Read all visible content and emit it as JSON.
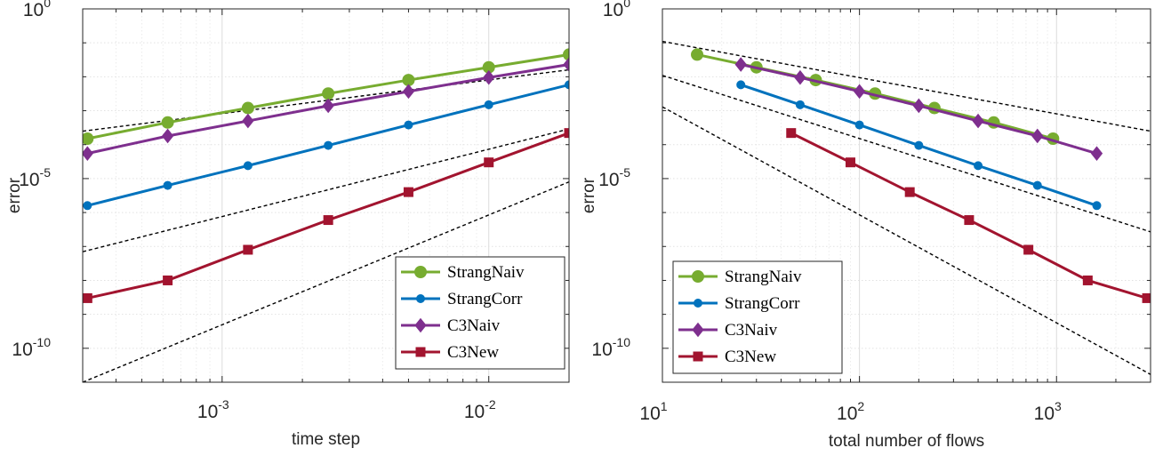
{
  "chart_data": [
    {
      "type": "line",
      "xlabel": "time step",
      "ylabel": "error",
      "xscale": "log",
      "yscale": "log",
      "xlim": [
        0.0003,
        0.02
      ],
      "ylim": [
        1e-11,
        1
      ],
      "xticks": [
        {
          "base": "10",
          "exp": "-3",
          "value": 0.001
        },
        {
          "base": "10",
          "exp": "-2",
          "value": 0.01
        }
      ],
      "yticks": [
        {
          "base": "10",
          "exp": "0",
          "value": 1
        },
        {
          "base": "10",
          "exp": "-5",
          "value": 1e-05
        },
        {
          "base": "10",
          "exp": "-10",
          "value": 1e-10
        }
      ],
      "grid": true,
      "legend": "bottom-right",
      "series": [
        {
          "name": "StrangNaiv",
          "color": "#77AC30",
          "marker": "circle-large",
          "x": [
            0.0003125,
            0.000625,
            0.00125,
            0.0025,
            0.005,
            0.01,
            0.02
          ],
          "y": [
            0.00015,
            0.00045,
            0.0012,
            0.0032,
            0.008,
            0.019,
            0.045
          ]
        },
        {
          "name": "StrangCorr",
          "color": "#0072BD",
          "marker": "circle-small",
          "x": [
            0.0003125,
            0.000625,
            0.00125,
            0.0025,
            0.005,
            0.01,
            0.02
          ],
          "y": [
            1.6e-06,
            6.3e-06,
            2.4e-05,
            9.5e-05,
            0.00038,
            0.0015,
            0.0058
          ]
        },
        {
          "name": "C3Naiv",
          "color": "#7E2F8E",
          "marker": "diamond",
          "x": [
            0.0003125,
            0.000625,
            0.00125,
            0.0025,
            0.005,
            0.01,
            0.02
          ],
          "y": [
            5.5e-05,
            0.00018,
            0.0005,
            0.0014,
            0.0037,
            0.0095,
            0.023
          ]
        },
        {
          "name": "C3New",
          "color": "#A2142F",
          "marker": "square",
          "x": [
            0.0003125,
            0.000625,
            0.00125,
            0.0025,
            0.005,
            0.01,
            0.02
          ],
          "y": [
            3e-09,
            1e-08,
            8e-08,
            6e-07,
            4e-06,
            3e-05,
            0.00022
          ]
        }
      ],
      "reference_lines": [
        {
          "x": [
            0.0003,
            0.02
          ],
          "y": [
            0.00025,
            0.016
          ]
        },
        {
          "x": [
            0.0003,
            0.02
          ],
          "y": [
            7e-08,
            0.00029
          ]
        },
        {
          "x": [
            0.0003,
            0.02
          ],
          "y": [
            1e-11,
            8e-06
          ]
        }
      ]
    },
    {
      "type": "line",
      "xlabel": "total number of flows",
      "ylabel": "error",
      "xscale": "log",
      "yscale": "log",
      "xlim": [
        10,
        3000
      ],
      "ylim": [
        1e-11,
        1
      ],
      "xticks": [
        {
          "base": "10",
          "exp": "1",
          "value": 10
        },
        {
          "base": "10",
          "exp": "2",
          "value": 100
        },
        {
          "base": "10",
          "exp": "3",
          "value": 1000
        }
      ],
      "yticks": [
        {
          "base": "10",
          "exp": "0",
          "value": 1
        },
        {
          "base": "10",
          "exp": "-5",
          "value": 1e-05
        },
        {
          "base": "10",
          "exp": "-10",
          "value": 1e-10
        }
      ],
      "grid": true,
      "legend": "bottom-left",
      "series": [
        {
          "name": "StrangNaiv",
          "color": "#77AC30",
          "marker": "circle-large",
          "x": [
            15,
            30,
            60,
            120,
            240,
            480,
            960
          ],
          "y": [
            0.045,
            0.019,
            0.008,
            0.0032,
            0.0012,
            0.00045,
            0.00015
          ]
        },
        {
          "name": "StrangCorr",
          "color": "#0072BD",
          "marker": "circle-small",
          "x": [
            25,
            50,
            100,
            200,
            400,
            800,
            1600
          ],
          "y": [
            0.0058,
            0.0015,
            0.00038,
            9.5e-05,
            2.4e-05,
            6.3e-06,
            1.6e-06
          ]
        },
        {
          "name": "C3Naiv",
          "color": "#7E2F8E",
          "marker": "diamond",
          "x": [
            25,
            50,
            100,
            200,
            400,
            800,
            1600
          ],
          "y": [
            0.023,
            0.0095,
            0.0037,
            0.0014,
            0.0005,
            0.00018,
            5.5e-05
          ]
        },
        {
          "name": "C3New",
          "color": "#A2142F",
          "marker": "square",
          "x": [
            45,
            90,
            180,
            360,
            720,
            1440,
            2880
          ],
          "y": [
            0.00022,
            3e-05,
            4e-06,
            6e-07,
            8e-08,
            1e-08,
            3e-09
          ]
        }
      ],
      "reference_lines": [
        {
          "x": [
            10,
            3000
          ],
          "y": [
            0.11,
            0.00025
          ]
        },
        {
          "x": [
            10,
            3000
          ],
          "y": [
            0.011,
            2.7e-07
          ]
        },
        {
          "x": [
            10,
            3000
          ],
          "y": [
            0.0013,
            1.7e-11
          ]
        }
      ]
    }
  ]
}
